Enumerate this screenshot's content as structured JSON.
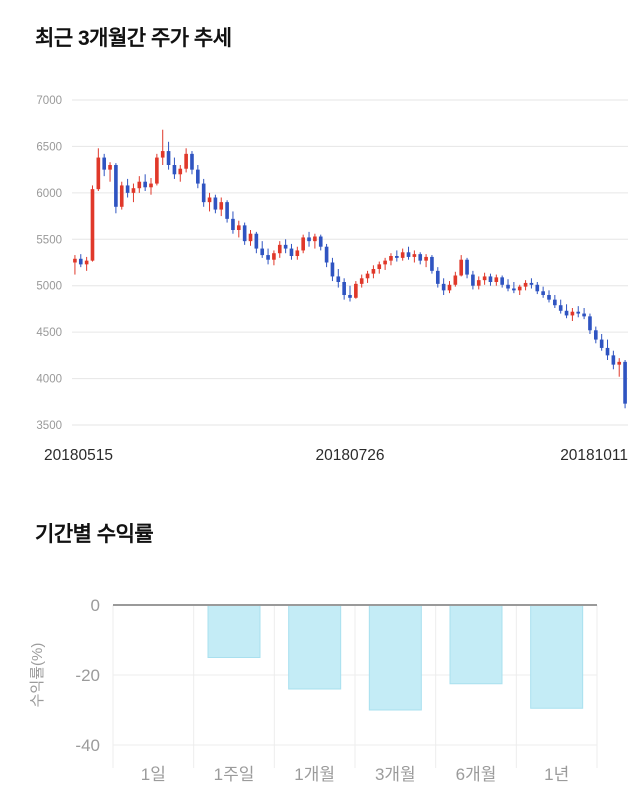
{
  "price_section": {
    "title": "최근 3개월간 주가 추세"
  },
  "returns_section": {
    "title": "기간별 수익률"
  },
  "chart_data": [
    {
      "type": "candlestick",
      "title": "최근 3개월간 주가 추세",
      "ylim": [
        3500,
        7000
      ],
      "y_ticks": [
        3500,
        4000,
        4500,
        5000,
        5500,
        6000,
        6500,
        7000
      ],
      "x_labels": [
        "20180515",
        "20180726",
        "20181011"
      ],
      "grid": true,
      "colors": {
        "up": "#e0382a",
        "down": "#2f54c1",
        "grid": "#e6e6e6",
        "tick_text": "#999999",
        "date_text": "#2b2b2b"
      },
      "candles_format": "open,high,low,close",
      "candles": [
        [
          5250,
          5330,
          5120,
          5290
        ],
        [
          5290,
          5340,
          5200,
          5230
        ],
        [
          5230,
          5310,
          5160,
          5270
        ],
        [
          5270,
          6080,
          5260,
          6040
        ],
        [
          6040,
          6480,
          6020,
          6380
        ],
        [
          6380,
          6420,
          6180,
          6250
        ],
        [
          6250,
          6330,
          6120,
          6300
        ],
        [
          6300,
          6320,
          5780,
          5850
        ],
        [
          5850,
          6120,
          5820,
          6080
        ],
        [
          6080,
          6150,
          5950,
          6000
        ],
        [
          6000,
          6100,
          5900,
          6050
        ],
        [
          6050,
          6180,
          6000,
          6120
        ],
        [
          6120,
          6200,
          6020,
          6060
        ],
        [
          6060,
          6160,
          5980,
          6100
        ],
        [
          6100,
          6420,
          6080,
          6380
        ],
        [
          6380,
          6680,
          6300,
          6450
        ],
        [
          6450,
          6550,
          6250,
          6300
        ],
        [
          6300,
          6380,
          6150,
          6200
        ],
        [
          6200,
          6300,
          6120,
          6260
        ],
        [
          6260,
          6480,
          6220,
          6420
        ],
        [
          6420,
          6450,
          6200,
          6250
        ],
        [
          6250,
          6300,
          6050,
          6100
        ],
        [
          6100,
          6150,
          5850,
          5900
        ],
        [
          5900,
          6000,
          5800,
          5950
        ],
        [
          5950,
          5980,
          5780,
          5820
        ],
        [
          5820,
          5950,
          5750,
          5900
        ],
        [
          5900,
          5920,
          5680,
          5720
        ],
        [
          5720,
          5800,
          5560,
          5600
        ],
        [
          5600,
          5700,
          5520,
          5650
        ],
        [
          5650,
          5680,
          5440,
          5480
        ],
        [
          5480,
          5600,
          5430,
          5560
        ],
        [
          5560,
          5580,
          5350,
          5400
        ],
        [
          5400,
          5480,
          5300,
          5330
        ],
        [
          5330,
          5400,
          5230,
          5280
        ],
        [
          5280,
          5380,
          5220,
          5350
        ],
        [
          5350,
          5480,
          5300,
          5440
        ],
        [
          5440,
          5500,
          5350,
          5400
        ],
        [
          5400,
          5450,
          5280,
          5320
        ],
        [
          5320,
          5420,
          5280,
          5380
        ],
        [
          5380,
          5550,
          5350,
          5520
        ],
        [
          5520,
          5580,
          5420,
          5480
        ],
        [
          5480,
          5560,
          5400,
          5530
        ],
        [
          5530,
          5550,
          5380,
          5420
        ],
        [
          5420,
          5450,
          5200,
          5250
        ],
        [
          5250,
          5300,
          5050,
          5100
        ],
        [
          5100,
          5180,
          4980,
          5040
        ],
        [
          5040,
          5080,
          4850,
          4900
        ],
        [
          4900,
          5000,
          4830,
          4870
        ],
        [
          4870,
          5050,
          4860,
          5020
        ],
        [
          5020,
          5120,
          4980,
          5080
        ],
        [
          5080,
          5160,
          5030,
          5130
        ],
        [
          5130,
          5220,
          5080,
          5180
        ],
        [
          5180,
          5260,
          5130,
          5230
        ],
        [
          5230,
          5300,
          5170,
          5270
        ],
        [
          5270,
          5350,
          5220,
          5320
        ],
        [
          5320,
          5380,
          5260,
          5300
        ],
        [
          5300,
          5400,
          5270,
          5360
        ],
        [
          5360,
          5420,
          5280,
          5310
        ],
        [
          5310,
          5380,
          5250,
          5340
        ],
        [
          5340,
          5360,
          5230,
          5270
        ],
        [
          5270,
          5340,
          5200,
          5310
        ],
        [
          5310,
          5330,
          5130,
          5160
        ],
        [
          5160,
          5200,
          4980,
          5020
        ],
        [
          5020,
          5080,
          4900,
          4950
        ],
        [
          4950,
          5050,
          4920,
          5010
        ],
        [
          5010,
          5150,
          4990,
          5110
        ],
        [
          5110,
          5330,
          5100,
          5280
        ],
        [
          5280,
          5300,
          5080,
          5120
        ],
        [
          5120,
          5160,
          4960,
          5000
        ],
        [
          5000,
          5100,
          4960,
          5060
        ],
        [
          5060,
          5140,
          5010,
          5100
        ],
        [
          5100,
          5130,
          5000,
          5040
        ],
        [
          5040,
          5120,
          5000,
          5090
        ],
        [
          5090,
          5110,
          4980,
          5010
        ],
        [
          5010,
          5070,
          4940,
          4970
        ],
        [
          4970,
          5040,
          4920,
          4950
        ],
        [
          4950,
          5010,
          4900,
          4990
        ],
        [
          4990,
          5060,
          4950,
          5030
        ],
        [
          5030,
          5080,
          4970,
          5010
        ],
        [
          5010,
          5040,
          4910,
          4940
        ],
        [
          4940,
          4990,
          4870,
          4900
        ],
        [
          4900,
          4950,
          4820,
          4850
        ],
        [
          4850,
          4900,
          4760,
          4790
        ],
        [
          4790,
          4850,
          4700,
          4730
        ],
        [
          4730,
          4800,
          4650,
          4680
        ],
        [
          4680,
          4760,
          4620,
          4720
        ],
        [
          4720,
          4780,
          4660,
          4700
        ],
        [
          4700,
          4760,
          4640,
          4670
        ],
        [
          4670,
          4700,
          4480,
          4520
        ],
        [
          4520,
          4560,
          4380,
          4420
        ],
        [
          4420,
          4480,
          4300,
          4330
        ],
        [
          4330,
          4420,
          4200,
          4250
        ],
        [
          4250,
          4300,
          4100,
          4150
        ],
        [
          4150,
          4220,
          4020,
          4180
        ],
        [
          4180,
          4200,
          3680,
          3730
        ]
      ]
    },
    {
      "type": "bar",
      "title": "기간별 수익률",
      "categories": [
        "1일",
        "1주일",
        "1개월",
        "3개월",
        "6개월",
        "1년"
      ],
      "values": [
        0,
        -15,
        -24,
        -30,
        -22.5,
        -29.5
      ],
      "xlabel": "",
      "ylabel": "수익률(%)",
      "ylim": [
        -40,
        0
      ],
      "y_ticks": [
        0,
        -20,
        -40
      ],
      "grid": true,
      "legend": "none",
      "colors": {
        "bar_fill": "#c4ecf6",
        "bar_border": "#a9e0ef",
        "axis_text": "#9b9b9b",
        "baseline": "#9a9a9a",
        "grid": "#ededed"
      }
    }
  ]
}
